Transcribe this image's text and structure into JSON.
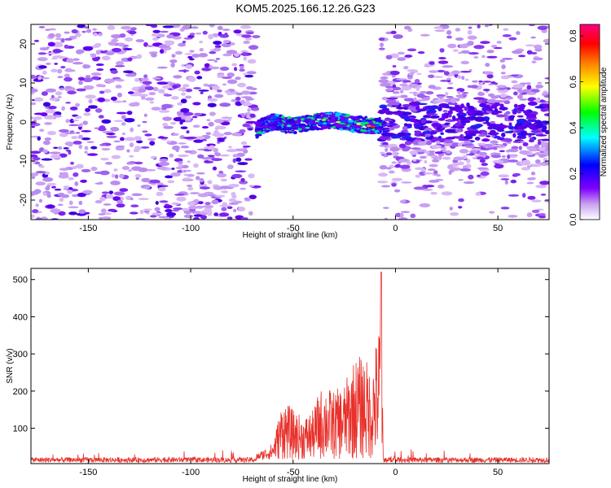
{
  "title": "KOM5.2025.166.12.26.G23",
  "chart_data": [
    {
      "type": "heatmap",
      "xlabel": "Height of straight line (km)",
      "ylabel": "Frequency (Hz)",
      "xlim": [
        -178,
        75
      ],
      "ylim": [
        -25,
        25
      ],
      "xticks": [
        -150,
        -100,
        -50,
        0,
        50
      ],
      "yticks": [
        -20,
        -10,
        0,
        10,
        20
      ],
      "colorbar": {
        "label": "Normalized spectral amplitude",
        "range": [
          0.0,
          0.85
        ],
        "ticks": [
          0.0,
          0.2,
          0.4,
          0.6,
          0.8
        ],
        "colormap": [
          "#ffffff",
          "#c8a0f0",
          "#8000ff",
          "#0000ff",
          "#00ffff",
          "#00ff00",
          "#ffff00",
          "#ff8000",
          "#ff0000",
          "#ff0080"
        ]
      },
      "signal_band": {
        "description_points_km_hz": [
          [
            -68,
            -2
          ],
          [
            -60,
            0
          ],
          [
            -50,
            -1
          ],
          [
            -40,
            0
          ],
          [
            -30,
            0.5
          ],
          [
            -20,
            -0.5
          ],
          [
            -10,
            -1
          ],
          [
            -7,
            -1
          ]
        ],
        "max_amplitude_at_km": -10
      }
    },
    {
      "type": "line",
      "xlabel": "Height of straight line (km)",
      "ylabel": "SNR (v/v)",
      "xlim": [
        -178,
        75
      ],
      "ylim": [
        5,
        530
      ],
      "xticks": [
        -150,
        -100,
        -50,
        0,
        50
      ],
      "yticks": [
        100,
        200,
        300,
        400,
        500
      ],
      "color": "#e8302a",
      "envelope": [
        [
          -178,
          22
        ],
        [
          -70,
          22
        ],
        [
          -60,
          60
        ],
        [
          -55,
          180
        ],
        [
          -50,
          150
        ],
        [
          -45,
          130
        ],
        [
          -40,
          150
        ],
        [
          -38,
          190
        ],
        [
          -35,
          220
        ],
        [
          -30,
          200
        ],
        [
          -25,
          220
        ],
        [
          -20,
          290
        ],
        [
          -15,
          300
        ],
        [
          -12,
          250
        ],
        [
          -10,
          320
        ],
        [
          -8,
          380
        ],
        [
          -7,
          520
        ],
        [
          -6,
          20
        ],
        [
          75,
          22
        ]
      ]
    }
  ]
}
